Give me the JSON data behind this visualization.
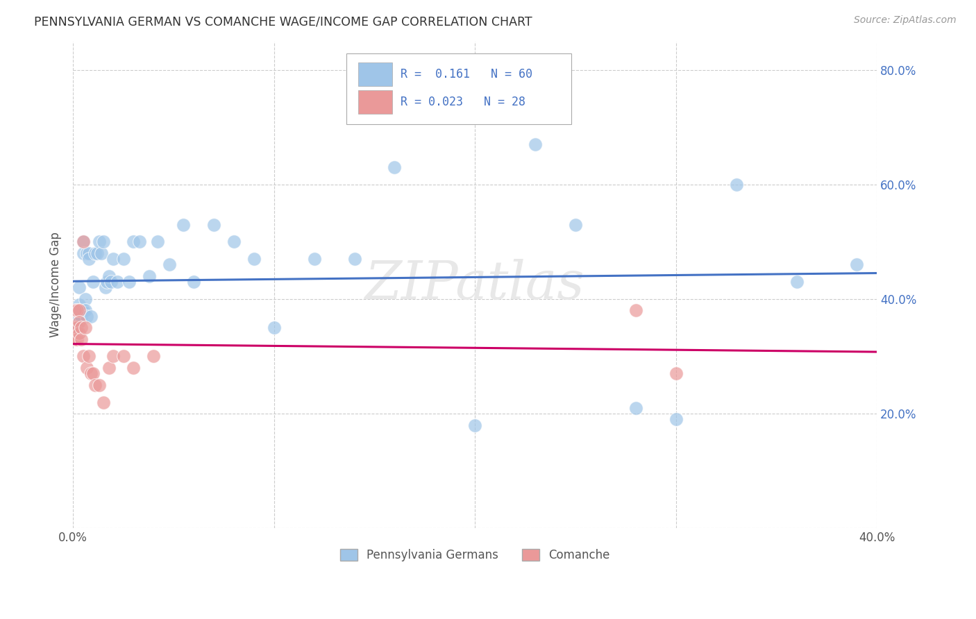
{
  "title": "PENNSYLVANIA GERMAN VS COMANCHE WAGE/INCOME GAP CORRELATION CHART",
  "source": "Source: ZipAtlas.com",
  "ylabel_label": "Wage/Income Gap",
  "x_min": 0.0,
  "x_max": 0.4,
  "y_min": 0.0,
  "y_max": 0.85,
  "x_ticks": [
    0.0,
    0.1,
    0.2,
    0.3,
    0.4
  ],
  "x_tick_labels": [
    "0.0%",
    "",
    "",
    "",
    "40.0%"
  ],
  "y_ticks": [
    0.0,
    0.2,
    0.4,
    0.6,
    0.8
  ],
  "y_tick_labels_right": [
    "",
    "20.0%",
    "40.0%",
    "60.0%",
    "80.0%"
  ],
  "blue_R": "0.161",
  "blue_N": "60",
  "pink_R": "0.023",
  "pink_N": "28",
  "blue_color": "#9fc5e8",
  "pink_color": "#ea9999",
  "blue_line_color": "#4472c4",
  "pink_line_color": "#cc0066",
  "legend_label1": "Pennsylvania Germans",
  "legend_label2": "Comanche",
  "blue_x": [
    0.001,
    0.001,
    0.001,
    0.002,
    0.002,
    0.002,
    0.002,
    0.003,
    0.003,
    0.003,
    0.003,
    0.004,
    0.004,
    0.004,
    0.005,
    0.005,
    0.005,
    0.006,
    0.006,
    0.007,
    0.007,
    0.008,
    0.008,
    0.009,
    0.01,
    0.011,
    0.012,
    0.013,
    0.014,
    0.015,
    0.016,
    0.017,
    0.018,
    0.019,
    0.02,
    0.022,
    0.025,
    0.028,
    0.03,
    0.033,
    0.038,
    0.042,
    0.048,
    0.055,
    0.06,
    0.07,
    0.08,
    0.09,
    0.1,
    0.12,
    0.14,
    0.16,
    0.2,
    0.23,
    0.25,
    0.28,
    0.3,
    0.33,
    0.36,
    0.39
  ],
  "blue_y": [
    0.38,
    0.37,
    0.35,
    0.38,
    0.37,
    0.36,
    0.35,
    0.42,
    0.39,
    0.38,
    0.37,
    0.38,
    0.38,
    0.37,
    0.5,
    0.48,
    0.38,
    0.4,
    0.38,
    0.48,
    0.37,
    0.48,
    0.47,
    0.37,
    0.43,
    0.48,
    0.48,
    0.5,
    0.48,
    0.5,
    0.42,
    0.43,
    0.44,
    0.43,
    0.47,
    0.43,
    0.47,
    0.43,
    0.5,
    0.5,
    0.44,
    0.5,
    0.46,
    0.53,
    0.43,
    0.53,
    0.5,
    0.47,
    0.35,
    0.47,
    0.47,
    0.63,
    0.18,
    0.67,
    0.53,
    0.21,
    0.19,
    0.6,
    0.43,
    0.46
  ],
  "pink_x": [
    0.001,
    0.001,
    0.001,
    0.002,
    0.002,
    0.002,
    0.003,
    0.003,
    0.003,
    0.004,
    0.004,
    0.005,
    0.005,
    0.006,
    0.007,
    0.008,
    0.009,
    0.01,
    0.011,
    0.013,
    0.015,
    0.018,
    0.02,
    0.025,
    0.03,
    0.04,
    0.28,
    0.3
  ],
  "pink_y": [
    0.38,
    0.35,
    0.33,
    0.38,
    0.35,
    0.33,
    0.38,
    0.36,
    0.34,
    0.35,
    0.33,
    0.3,
    0.5,
    0.35,
    0.28,
    0.3,
    0.27,
    0.27,
    0.25,
    0.25,
    0.22,
    0.28,
    0.3,
    0.3,
    0.28,
    0.3,
    0.38,
    0.27
  ],
  "background_color": "#ffffff",
  "grid_color": "#cccccc",
  "watermark_text": "ZIPatlas",
  "watermark_color": "#e8e8e8",
  "watermark_fontsize": 55
}
